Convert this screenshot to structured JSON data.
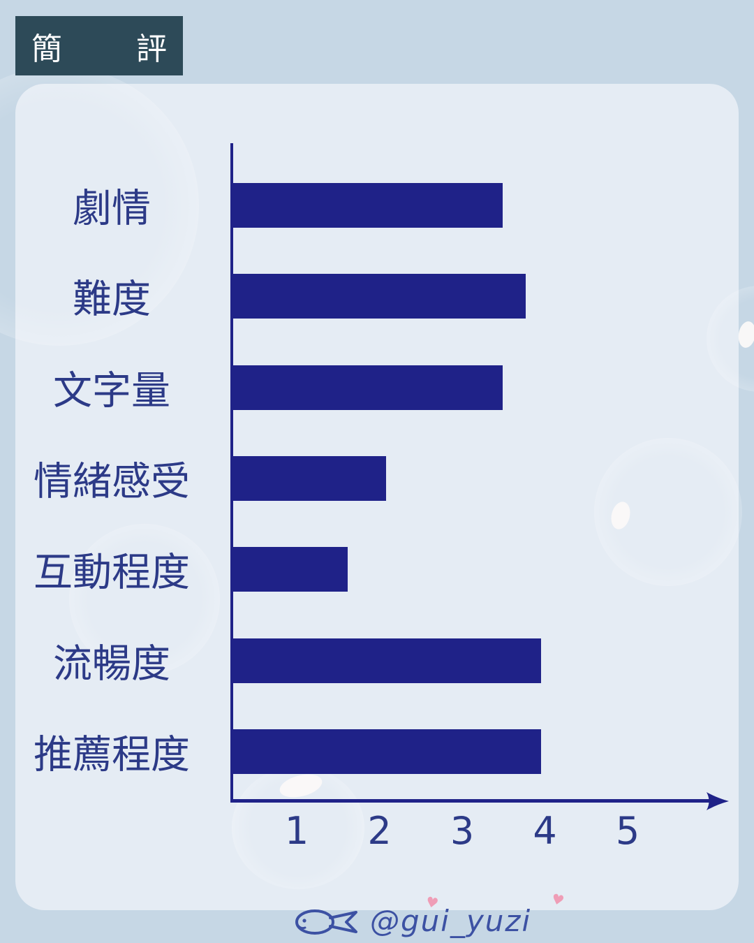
{
  "title": {
    "label": "簡  評"
  },
  "chart_data": {
    "type": "bar",
    "orientation": "horizontal",
    "title": "簡評",
    "categories": [
      "劇情",
      "難度",
      "文字量",
      "情緒感受",
      "互動程度",
      "流暢度",
      "推薦程度"
    ],
    "values": [
      3.5,
      3.8,
      3.5,
      2,
      1.5,
      4,
      4
    ],
    "x_ticks": [
      "1",
      "2",
      "3",
      "4",
      "5"
    ],
    "xlim": [
      0,
      5
    ],
    "grid": false,
    "legend": false,
    "xlabel": "",
    "ylabel": ""
  },
  "signature": {
    "handle": "@gui_yuzi",
    "icon": "fish-doodle",
    "heart_glyph": "♥"
  },
  "colors": {
    "outer_bg": "#c6d7e5",
    "panel_bg": "#e5ecf4",
    "bar": "#1f2288",
    "axis": "#1f2288",
    "label_text": "#2c3a87",
    "title_bg": "#2d4a58",
    "title_text": "#ffffff",
    "signature": "#3c51a3",
    "heart": "#ef9db6"
  }
}
